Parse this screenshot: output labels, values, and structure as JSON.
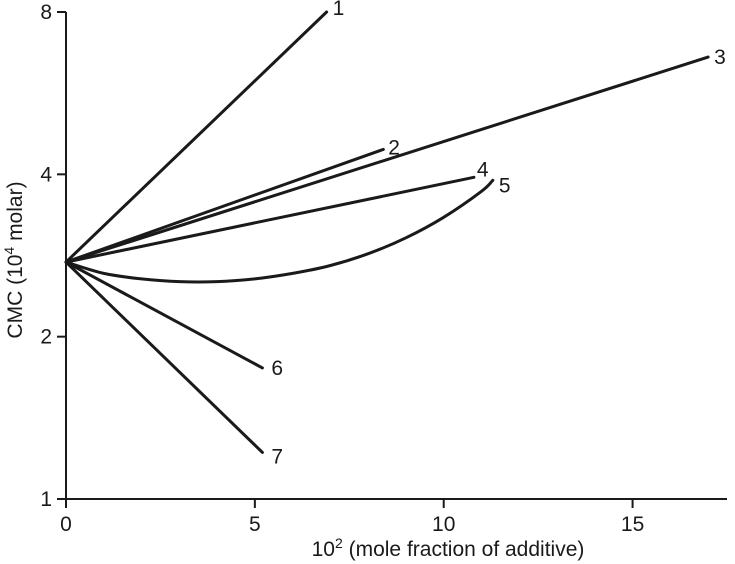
{
  "chart_data": {
    "type": "line",
    "title": "",
    "xlabel": "10",
    "xlabel_sup": "2",
    "xlabel_rest": " (mole fraction of additive)",
    "ylabel": "CMC (10",
    "ylabel_sup": "4",
    "ylabel_rest": " molar)",
    "y_scale": "log",
    "xlim": [
      0,
      17.5
    ],
    "ylim": [
      1,
      8
    ],
    "x_ticks": [
      0,
      5,
      10,
      15
    ],
    "y_ticks": [
      1,
      2,
      4,
      8
    ],
    "grid": false,
    "legend": "none",
    "series": [
      {
        "label": "1",
        "points": [
          [
            0,
            2.75
          ],
          [
            6.9,
            8.0
          ]
        ]
      },
      {
        "label": "2",
        "points": [
          [
            0,
            2.75
          ],
          [
            8.4,
            4.45
          ]
        ]
      },
      {
        "label": "3",
        "points": [
          [
            0,
            2.75
          ],
          [
            17.0,
            6.6
          ]
        ]
      },
      {
        "label": "4",
        "points": [
          [
            0,
            2.75
          ],
          [
            10.8,
            3.95
          ]
        ]
      },
      {
        "label": "5",
        "points": [
          [
            0,
            2.75
          ],
          [
            1.0,
            2.62
          ],
          [
            2.0,
            2.56
          ],
          [
            3.0,
            2.53
          ],
          [
            4.0,
            2.53
          ],
          [
            5.0,
            2.56
          ],
          [
            6.0,
            2.62
          ],
          [
            7.0,
            2.71
          ],
          [
            8.0,
            2.85
          ],
          [
            9.0,
            3.05
          ],
          [
            10.0,
            3.33
          ],
          [
            11.0,
            3.72
          ],
          [
            11.3,
            3.9
          ]
        ]
      },
      {
        "label": "6",
        "points": [
          [
            0,
            2.75
          ],
          [
            5.2,
            1.75
          ]
        ]
      },
      {
        "label": "7",
        "points": [
          [
            0,
            2.75
          ],
          [
            5.2,
            1.22
          ]
        ]
      }
    ]
  }
}
